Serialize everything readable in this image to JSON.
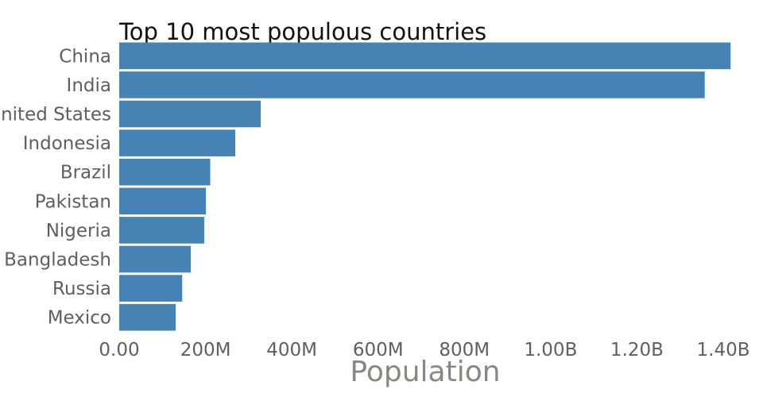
{
  "chart_data": {
    "type": "bar",
    "orientation": "horizontal",
    "title": "Top 10 most populous countries",
    "xlabel": "Population",
    "ylabel": "",
    "categories": [
      "China",
      "India",
      "United States",
      "Indonesia",
      "Brazil",
      "Pakistan",
      "Nigeria",
      "Bangladesh",
      "Russia",
      "Mexico"
    ],
    "values": [
      1417000000,
      1357000000,
      328000000,
      269000000,
      211000000,
      201000000,
      197000000,
      166000000,
      146000000,
      131000000
    ],
    "xlim": [
      0,
      1400000000
    ],
    "xticks": [
      0,
      200000000,
      400000000,
      600000000,
      800000000,
      1000000000,
      1200000000,
      1400000000
    ],
    "xtick_labels": [
      "0.00",
      "200M",
      "400M",
      "600M",
      "800M",
      "1.00B",
      "1.20B",
      "1.40B"
    ],
    "grid": false,
    "legend": "none",
    "bar_color": "#4682b4"
  }
}
